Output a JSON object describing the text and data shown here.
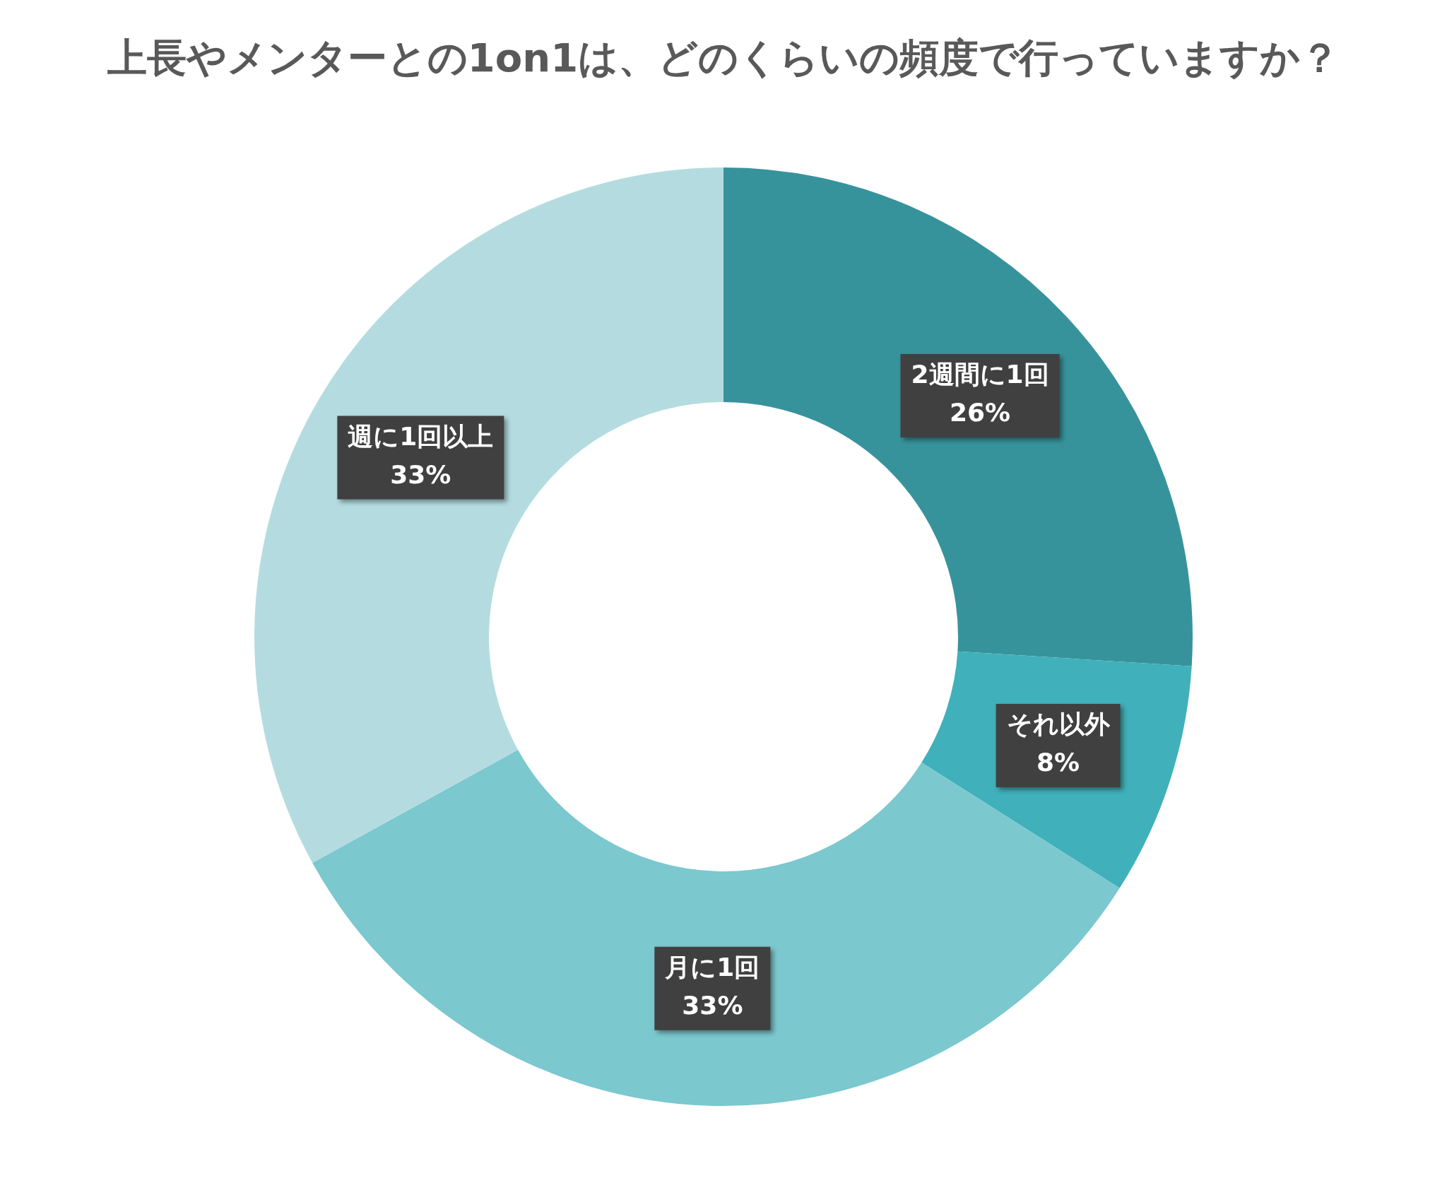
{
  "chart_data": {
    "type": "donut",
    "title": "上長やメンターとの1on1は、どのくらいの頻度で行っていますか？",
    "categories": [
      "2週間に1回",
      "それ以外",
      "月に1回",
      "週に1回以上"
    ],
    "values": [
      26,
      8,
      33,
      33
    ],
    "colors": [
      "#37939b",
      "#40b0ba",
      "#7bc8cf",
      "#b4dce0"
    ],
    "value_labels": [
      "26%",
      "8%",
      "33%",
      "33%"
    ],
    "legend": false
  }
}
